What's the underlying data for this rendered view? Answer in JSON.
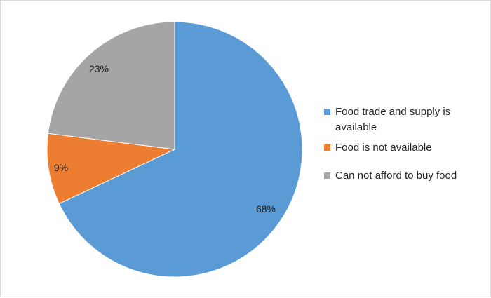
{
  "chart_data": {
    "type": "pie",
    "title": "",
    "start_angle_deg": 0,
    "direction": "clockwise",
    "legend_position": "right",
    "slices": [
      {
        "label": "Food trade and supply is available",
        "value": 68,
        "display": "68%",
        "color": "#5b9bd5"
      },
      {
        "label": "Food is not available",
        "value": 9,
        "display": "9%",
        "color": "#ed7d31"
      },
      {
        "label": "Can not afford to buy food",
        "value": 23,
        "display": "23%",
        "color": "#a5a5a5"
      }
    ]
  }
}
